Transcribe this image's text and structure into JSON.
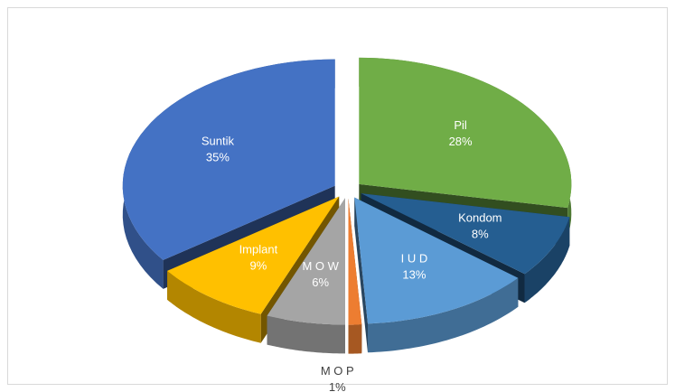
{
  "chart_data": {
    "type": "pie3d",
    "categories": [
      "Pil",
      "Kondom",
      "I U D",
      "M O P",
      "M O W",
      "Implant",
      "Suntik"
    ],
    "values": [
      28,
      8,
      13,
      1,
      6,
      9,
      35
    ],
    "value_labels": [
      "28%",
      "8%",
      "13%",
      "1%",
      "6%",
      "9%",
      "35%"
    ],
    "colors": [
      "#70ad47",
      "#255e91",
      "#5b9bd5",
      "#ed7d31",
      "#a5a5a5",
      "#ffc000",
      "#4472c4"
    ]
  }
}
